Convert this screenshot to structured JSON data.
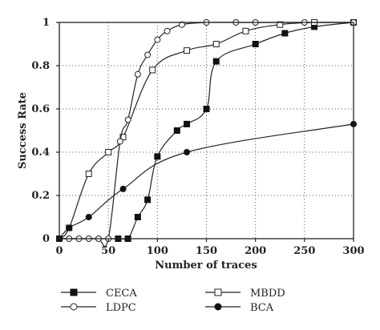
{
  "chart_data": {
    "type": "line",
    "xlabel": "Number of traces",
    "ylabel": "Success Rate",
    "xlim": [
      0,
      300
    ],
    "ylim": [
      0,
      1
    ],
    "xticks": [
      0,
      50,
      100,
      150,
      200,
      250,
      300
    ],
    "yticks": [
      0,
      0.2,
      0.4,
      0.6,
      0.8,
      1
    ],
    "ytick_labels": [
      "0",
      "0.2",
      "0.4",
      "0.6",
      "0.8",
      "1"
    ],
    "grid": "dotted",
    "legend_placement": "bottom",
    "series": [
      {
        "name": "CECA",
        "marker": "filled-square",
        "x": [
          0,
          60,
          70,
          80,
          90,
          100,
          120,
          130,
          150,
          160,
          200,
          230,
          260,
          300
        ],
        "y": [
          0,
          0,
          0,
          0.1,
          0.18,
          0.38,
          0.5,
          0.53,
          0.6,
          0.82,
          0.9,
          0.95,
          0.98,
          1
        ]
      },
      {
        "name": "MBDD",
        "marker": "open-square",
        "x": [
          0,
          10,
          30,
          50,
          65,
          95,
          130,
          160,
          190,
          225,
          260,
          300
        ],
        "y": [
          0,
          0.05,
          0.3,
          0.4,
          0.47,
          0.78,
          0.87,
          0.9,
          0.96,
          0.99,
          1,
          1
        ]
      },
      {
        "name": "LDPC",
        "marker": "open-circle",
        "x": [
          0,
          10,
          20,
          30,
          40,
          50,
          62,
          70,
          80,
          90,
          100,
          110,
          125,
          150,
          180,
          200,
          250,
          300
        ],
        "y": [
          0,
          0,
          0,
          0,
          0,
          0,
          0.45,
          0.55,
          0.76,
          0.85,
          0.92,
          0.96,
          0.99,
          1,
          1,
          1,
          1,
          1
        ]
      },
      {
        "name": "BCA",
        "marker": "filled-circle",
        "x": [
          0,
          10,
          30,
          65,
          130,
          300
        ],
        "y": [
          0,
          0.05,
          0.1,
          0.23,
          0.4,
          0.53
        ]
      }
    ]
  }
}
